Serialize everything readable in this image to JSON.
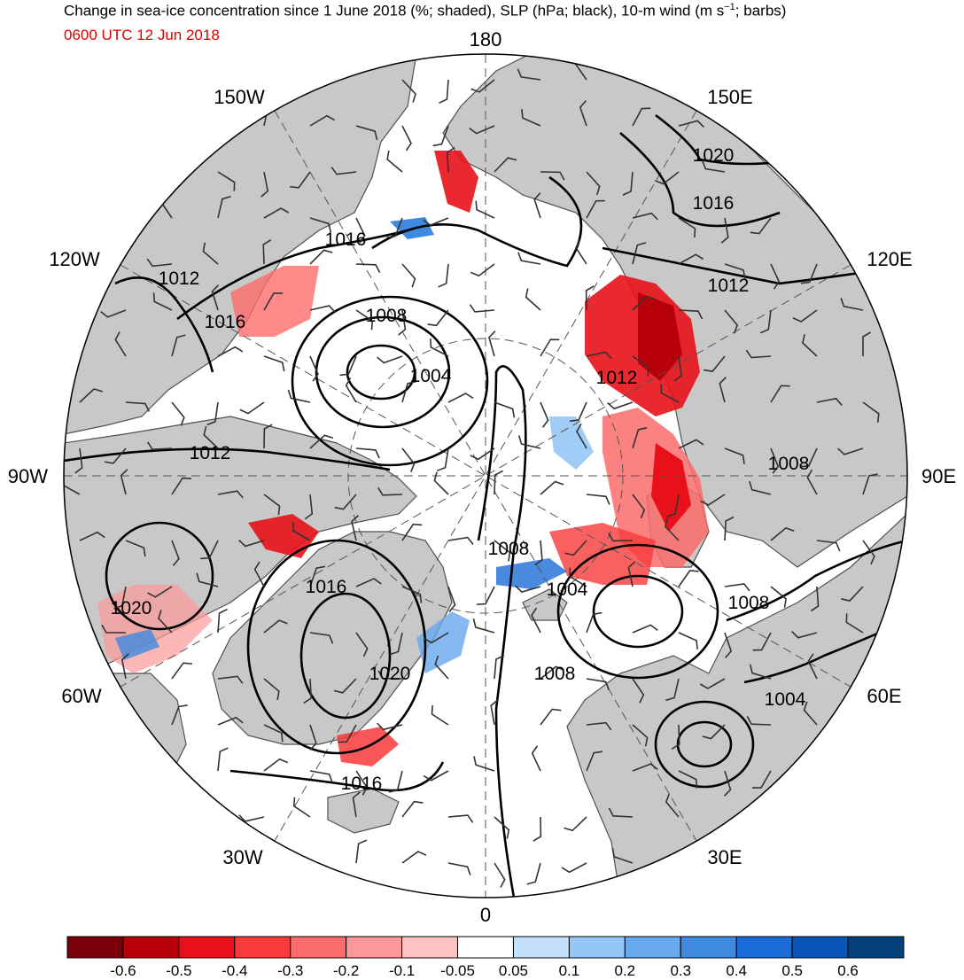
{
  "header": {
    "title": "Change in sea-ice concentration since 1 June 2018 (%; shaded), SLP (hPa; black), 10-m wind (m s",
    "title_sup": "−1",
    "title_end": "; barbs)",
    "time": "0600 UTC 12 Jun 2018"
  },
  "map": {
    "projection": "north-polar-stereographic",
    "longitude_labels": [
      "180",
      "150E",
      "120E",
      "90E",
      "60E",
      "30E",
      "0",
      "30W",
      "60W",
      "90W",
      "120W",
      "150W"
    ],
    "slp_contour_labels": [
      "1020",
      "1016",
      "1012",
      "1008",
      "1004",
      "1012",
      "1016",
      "1012",
      "1016",
      "1008",
      "1004",
      "1012",
      "1008",
      "1004",
      "1016",
      "1020",
      "1016",
      "1008",
      "1020",
      "1004",
      "1008"
    ],
    "colors": {
      "land": "#c8c8c8",
      "ocean": "#ffffff",
      "coast": "#505050",
      "contour": "#000000",
      "grid": "#555555"
    }
  },
  "colorbar": {
    "colors": [
      "#7a0008",
      "#b8000a",
      "#e8111a",
      "#f83a3a",
      "#fc6b6b",
      "#fd9898",
      "#fdc3c3",
      "#ffffff",
      "#c4e0fb",
      "#96c6f5",
      "#68a8ec",
      "#3f8ae0",
      "#1b6cd6",
      "#0a53b7",
      "#053f7c"
    ],
    "tick_labels": [
      "-0.6",
      "-0.5",
      "-0.4",
      "-0.3",
      "-0.2",
      "-0.1",
      "-0.05",
      "0.05",
      "0.1",
      "0.2",
      "0.3",
      "0.4",
      "0.5",
      "0.6"
    ]
  }
}
